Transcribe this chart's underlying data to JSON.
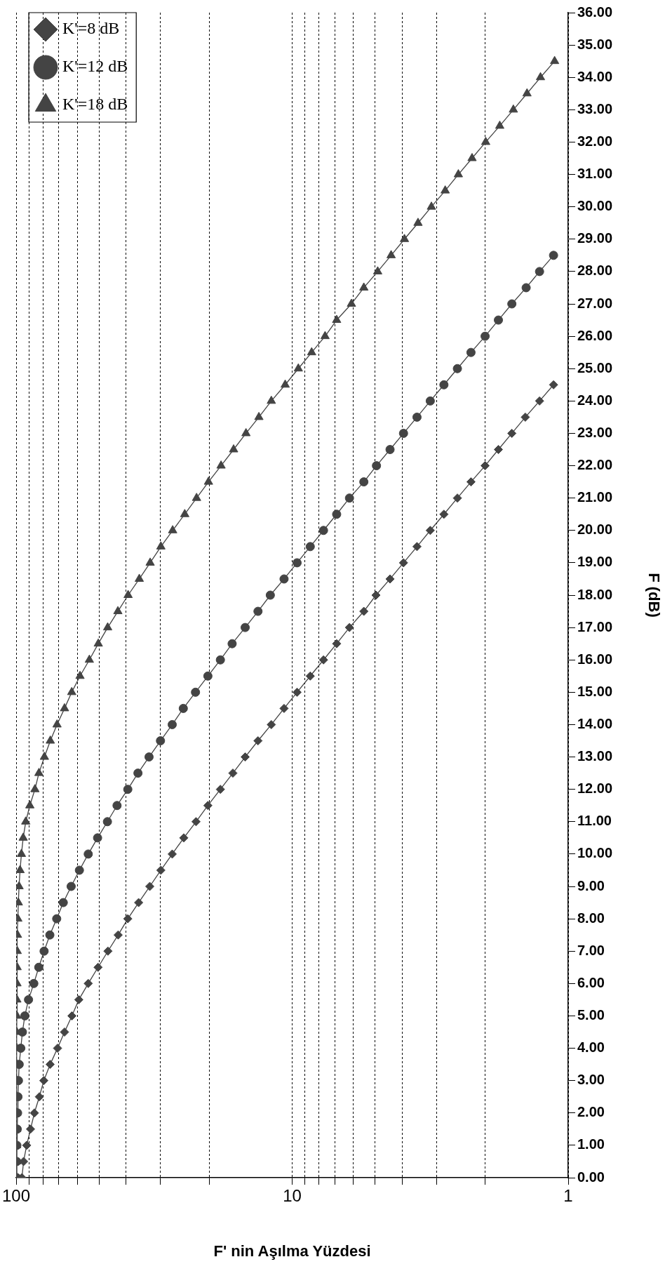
{
  "chart_data": {
    "type": "line",
    "xlabel": "F' nin Aşılma Yüzdesi",
    "ylabel": "F (dB)",
    "log": "x",
    "xlim": [
      100,
      1
    ],
    "xticks": [
      100,
      {
        "value": 90,
        "label": null
      },
      {
        "value": 80,
        "label": null
      },
      {
        "value": 70,
        "label": null
      },
      {
        "value": 60,
        "label": null
      },
      {
        "value": 50,
        "label": null
      },
      {
        "value": 40,
        "label": null
      },
      {
        "value": 30,
        "label": null
      },
      {
        "value": 20,
        "label": null
      },
      10,
      {
        "value": 9,
        "label": null
      },
      {
        "value": 8,
        "label": null
      },
      {
        "value": 7,
        "label": null
      },
      {
        "value": 6,
        "label": null
      },
      {
        "value": 5,
        "label": null
      },
      {
        "value": 4,
        "label": null
      },
      {
        "value": 3,
        "label": null
      },
      {
        "value": 2,
        "label": null
      },
      1
    ],
    "ylim": [
      0,
      36
    ],
    "yticks": [
      {
        "value": 0,
        "label": "0.00"
      },
      {
        "value": 1,
        "label": "1.00"
      },
      {
        "value": 2,
        "label": "2.00"
      },
      {
        "value": 3,
        "label": "3.00"
      },
      {
        "value": 4,
        "label": "4.00"
      },
      {
        "value": 5,
        "label": "5.00"
      },
      {
        "value": 6,
        "label": "6.00"
      },
      {
        "value": 7,
        "label": "7.00"
      },
      {
        "value": 8,
        "label": "8.00"
      },
      {
        "value": 9,
        "label": "9.00"
      },
      {
        "value": 10,
        "label": "10.00"
      },
      {
        "value": 11,
        "label": "11.00"
      },
      {
        "value": 12,
        "label": "12.00"
      },
      {
        "value": 13,
        "label": "13.00"
      },
      {
        "value": 14,
        "label": "14.00"
      },
      {
        "value": 15,
        "label": "15.00"
      },
      {
        "value": 16,
        "label": "16.00"
      },
      {
        "value": 17,
        "label": "17.00"
      },
      {
        "value": 18,
        "label": "18.00"
      },
      {
        "value": 19,
        "label": "19.00"
      },
      {
        "value": 20,
        "label": "20.00"
      },
      {
        "value": 21,
        "label": "21.00"
      },
      {
        "value": 22,
        "label": "22.00"
      },
      {
        "value": 23,
        "label": "23.00"
      },
      {
        "value": 24,
        "label": "24.00"
      },
      {
        "value": 25,
        "label": "25.00"
      },
      {
        "value": 26,
        "label": "26.00"
      },
      {
        "value": 27,
        "label": "27.00"
      },
      {
        "value": 28,
        "label": "28.00"
      },
      {
        "value": 29,
        "label": "29.00"
      },
      {
        "value": 30,
        "label": "30.00"
      },
      {
        "value": 31,
        "label": "31.00"
      },
      {
        "value": 32,
        "label": "32.00"
      },
      {
        "value": 33,
        "label": "33.00"
      },
      {
        "value": 34,
        "label": "34.00"
      },
      {
        "value": 35,
        "label": "35.00"
      },
      {
        "value": 36,
        "label": "36.00"
      }
    ],
    "grid": "x",
    "legend": "top left",
    "line_style": "solid",
    "series": [
      {
        "name": "K'=8 dB",
        "color": "#444444",
        "marker": "diamond",
        "x": [
          95.3,
          94.0,
          91.6,
          88.7,
          85.9,
          82.4,
          79.4,
          75.3,
          70.8,
          66.8,
          62.8,
          59.3,
          54.8,
          50.5,
          46.5,
          42.7,
          39.4,
          36.0,
          32.8,
          29.9,
          27.2,
          24.7,
          22.3,
          20.2,
          18.2,
          16.4,
          14.8,
          13.3,
          11.9,
          10.7,
          9.6,
          8.6,
          7.7,
          6.9,
          6.2,
          5.5,
          4.97,
          4.42,
          3.95,
          3.53,
          3.16,
          2.82,
          2.52,
          2.25,
          2.0,
          1.79,
          1.6,
          1.43,
          1.27,
          1.13
        ],
        "values": [
          0,
          0.5,
          1,
          1.5,
          2,
          2.5,
          3,
          3.5,
          4,
          4.5,
          5,
          5.5,
          6,
          6.5,
          7,
          7.5,
          8,
          8.5,
          9,
          9.5,
          10,
          10.5,
          11,
          11.5,
          12,
          12.5,
          13,
          13.5,
          14,
          14.5,
          15,
          15.5,
          16,
          16.5,
          17,
          17.5,
          18,
          18.5,
          19,
          19.5,
          20,
          20.5,
          21,
          21.5,
          22,
          22.5,
          23,
          23.5,
          24,
          24.5
        ]
      },
      {
        "name": "K'=12 dB",
        "color": "#444444",
        "marker": "circle",
        "x": [
          99.6,
          99.5,
          99.4,
          99.1,
          98.8,
          98.5,
          98.1,
          97.5,
          96.2,
          94.9,
          93.0,
          90.2,
          86.3,
          82.8,
          79.2,
          75.5,
          71.3,
          67.5,
          63.2,
          59.0,
          54.8,
          50.7,
          46.7,
          43.1,
          39.4,
          36.2,
          33.0,
          30.0,
          27.2,
          24.8,
          22.4,
          20.2,
          18.2,
          16.5,
          14.8,
          13.3,
          12.0,
          10.7,
          9.6,
          8.6,
          7.7,
          6.9,
          6.2,
          5.5,
          4.95,
          4.42,
          3.95,
          3.53,
          3.16,
          2.82,
          2.52,
          2.25,
          2.0,
          1.79,
          1.6,
          1.42,
          1.27,
          1.13
        ],
        "values": [
          0,
          0.5,
          1,
          1.5,
          2,
          2.5,
          3,
          3.5,
          4,
          4.5,
          5,
          5.5,
          6,
          6.5,
          7,
          7.5,
          8,
          8.5,
          9,
          9.5,
          10,
          10.5,
          11,
          11.5,
          12,
          12.5,
          13,
          13.5,
          14,
          14.5,
          15,
          15.5,
          16,
          16.5,
          17,
          17.5,
          18,
          18.5,
          19,
          19.5,
          20,
          20.5,
          21,
          21.5,
          22,
          22.5,
          23,
          23.5,
          24,
          24.5,
          25,
          25.5,
          26,
          26.5,
          27,
          27.5,
          28,
          28.5
        ]
      },
      {
        "name": "K'=18 dB",
        "color": "#444444",
        "marker": "triangle",
        "x": [
          99.6,
          99.6,
          99.6,
          99.6,
          99.6,
          99.6,
          99.6,
          99.5,
          99.5,
          99.5,
          99.4,
          99.4,
          99.3,
          99.2,
          99.1,
          98.9,
          98.6,
          98.2,
          97.6,
          96.8,
          95.7,
          94.3,
          92.3,
          89.2,
          85.5,
          82.7,
          79.0,
          75.2,
          71.1,
          66.8,
          62.9,
          58.7,
          54.3,
          50.4,
          46.6,
          42.8,
          39.3,
          35.8,
          32.7,
          29.9,
          27.1,
          24.5,
          22.2,
          20.1,
          18.1,
          16.3,
          14.7,
          13.2,
          11.9,
          10.6,
          9.5,
          8.5,
          7.6,
          6.9,
          6.1,
          5.5,
          4.9,
          4.38,
          3.92,
          3.5,
          3.13,
          2.79,
          2.5,
          2.23,
          1.99,
          1.77,
          1.58,
          1.41,
          1.26,
          1.12
        ],
        "values": [
          0,
          0.5,
          1,
          1.5,
          2,
          2.5,
          3,
          3.5,
          4,
          4.5,
          5,
          5.5,
          6,
          6.5,
          7,
          7.5,
          8,
          8.5,
          9,
          9.5,
          10,
          10.5,
          11,
          11.5,
          12,
          12.5,
          13,
          13.5,
          14,
          14.5,
          15,
          15.5,
          16,
          16.5,
          17,
          17.5,
          18,
          18.5,
          19,
          19.5,
          20,
          20.5,
          21,
          21.5,
          22,
          22.5,
          23,
          23.5,
          24,
          24.5,
          25,
          25.5,
          26,
          26.5,
          27,
          27.5,
          28,
          28.5,
          29,
          29.5,
          30,
          30.5,
          31,
          31.5,
          32,
          32.5,
          33,
          33.5,
          34,
          34.5
        ]
      }
    ]
  }
}
